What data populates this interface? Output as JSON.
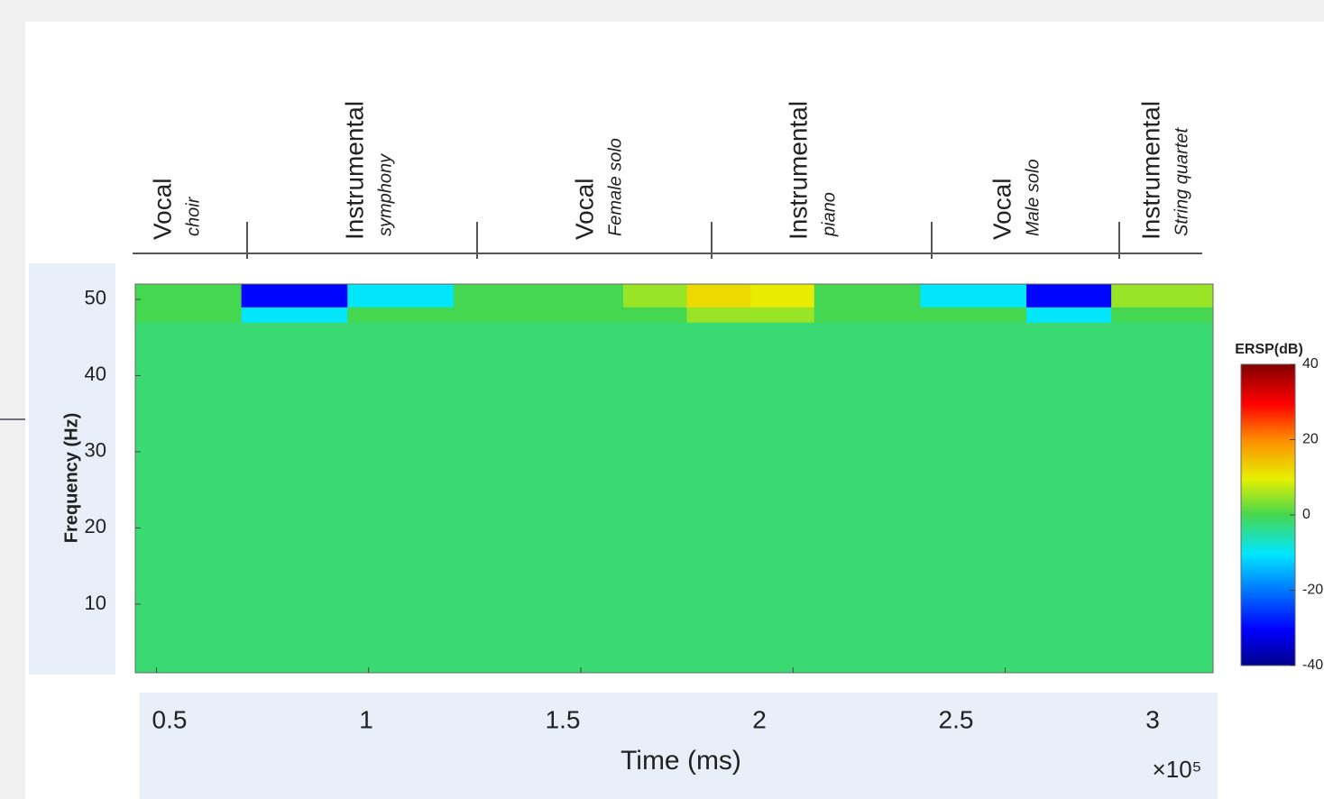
{
  "chart_data": {
    "type": "heatmap",
    "x_label": "Time (ms)",
    "x_exponent": "×10⁵",
    "y_label": "Frequency (Hz)",
    "xlim": [
      0.45,
      2.99
    ],
    "xticks": [
      0.5,
      1,
      1.5,
      2,
      2.5,
      3
    ],
    "ylim": [
      1,
      52
    ],
    "yticks": [
      10,
      20,
      30,
      40,
      50
    ],
    "x_bins": [
      0.45,
      0.7,
      0.95,
      1.2,
      1.45,
      1.6,
      1.75,
      1.9,
      2.05,
      2.3,
      2.55,
      2.75,
      2.99
    ],
    "y_bins": [
      1,
      47,
      49,
      52
    ],
    "z": [
      [
        -2,
        -2,
        -2,
        -2,
        -2,
        -2,
        -2,
        -2,
        -2,
        -2,
        -2,
        -2
      ],
      [
        0,
        -10,
        0,
        0,
        0,
        0,
        5,
        5,
        0,
        0,
        -10,
        0
      ],
      [
        0,
        -30,
        -10,
        0,
        0,
        5,
        12,
        10,
        0,
        -10,
        -30,
        5
      ]
    ],
    "colorbar": {
      "label": "ERSP(dB)",
      "clim": [
        -40,
        40
      ],
      "ticks": [
        40,
        20,
        0,
        -20,
        -40
      ]
    },
    "segments": [
      {
        "label": "Vocal",
        "sublabel": "choir"
      },
      {
        "label": "Instrumental",
        "sublabel": "symphony"
      },
      {
        "label": "Vocal",
        "sublabel": "Female solo"
      },
      {
        "label": "Instrumental",
        "sublabel": "piano"
      },
      {
        "label": "Vocal",
        "sublabel": "Male solo"
      },
      {
        "label": "Instrumental",
        "sublabel": "String quartet"
      }
    ]
  }
}
